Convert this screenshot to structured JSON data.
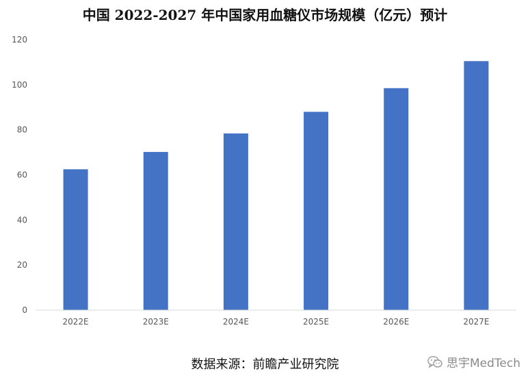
{
  "chart_data": {
    "type": "bar",
    "title": "中国 2022-2027 年中国家用血糖仪市场规模（亿元）预计",
    "categories": [
      "2022E",
      "2023E",
      "2024E",
      "2025E",
      "2026E",
      "2027E"
    ],
    "values": [
      62.5,
      70.2,
      78.4,
      88.0,
      98.5,
      110.5
    ],
    "ylim": [
      0,
      120
    ],
    "yticks": [
      0,
      20,
      40,
      60,
      80,
      100,
      120
    ],
    "grid": false,
    "legend": "none",
    "bar_color": "#4472C4",
    "axis_color": "#D9D9D9"
  },
  "source_note": "数据来源：前瞻产业研究院",
  "watermark": {
    "icon": "wechat-icon",
    "text": "思宇MedTech"
  }
}
